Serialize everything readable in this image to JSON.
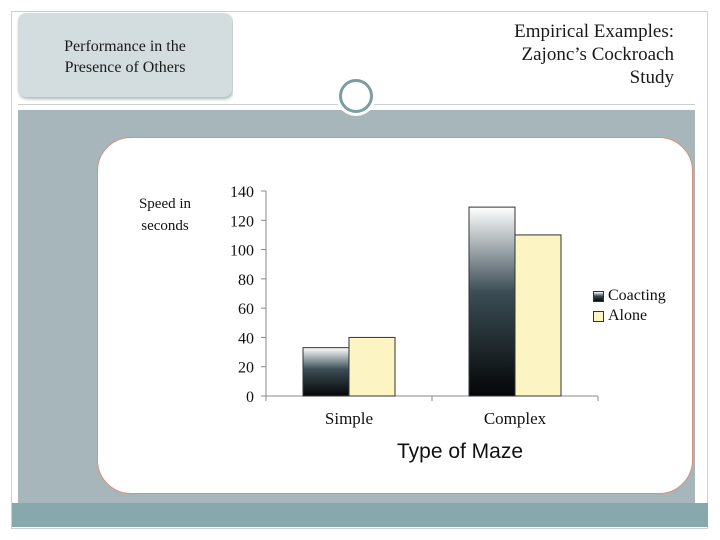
{
  "header": {
    "left_title_line1": "Performance in the",
    "left_title_line2": "Presence of Others",
    "title_line1": "Empirical Examples:",
    "title_line2": "Zajonc’s Cockroach",
    "title_line3": "Study"
  },
  "chart_data": {
    "type": "bar",
    "categories": [
      "Simple",
      "Complex"
    ],
    "series": [
      {
        "name": "Coacting",
        "values": [
          33,
          129
        ]
      },
      {
        "name": "Alone",
        "values": [
          40,
          110
        ]
      }
    ],
    "ylabel_line1": "Speed in",
    "ylabel_line2": "seconds",
    "xlabel": "Type of Maze",
    "ylim": [
      0,
      140
    ],
    "yticks": [
      0,
      20,
      40,
      60,
      80,
      100,
      120,
      140
    ],
    "legend_position": "right",
    "grid": false,
    "colors": {
      "Coacting": "#34454d",
      "Alone": "#fdf4c4"
    }
  }
}
